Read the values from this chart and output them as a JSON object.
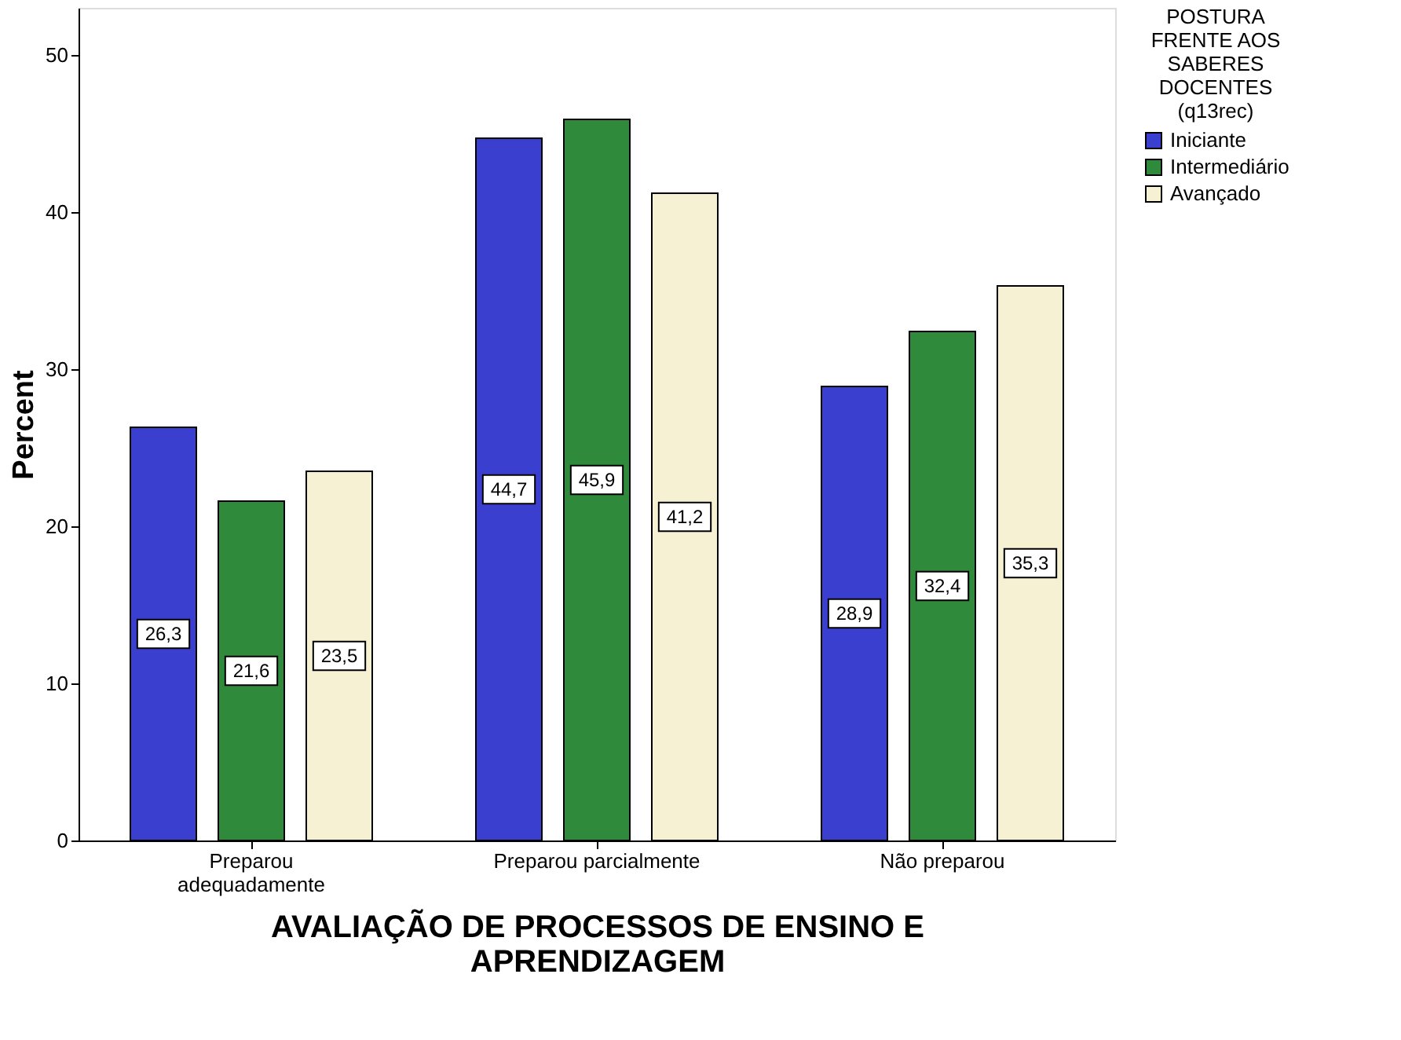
{
  "chart_data": {
    "type": "bar",
    "categories": [
      "Preparou adequadamente",
      "Preparou parcialmente",
      "Não preparou"
    ],
    "ylabel": "Percent",
    "xlabel": "AVALIAÇÃO DE PROCESSOS DE ENSINO E\nAPRENDIZAGEM",
    "legend_title": "POSTURA\nFRENTE AOS\nSABERES\nDOCENTES\n(q13rec)",
    "series": [
      {
        "name": "Iniciante",
        "color": "#3b3fd0",
        "values": [
          26.3,
          44.7,
          28.9
        ],
        "value_labels": [
          "26,3",
          "44,7",
          "28,9"
        ]
      },
      {
        "name": "Intermediário",
        "color": "#2f8a3c",
        "values": [
          21.6,
          45.9,
          32.4
        ],
        "value_labels": [
          "21,6",
          "45,9",
          "32,4"
        ]
      },
      {
        "name": "Avançado",
        "color": "#f6f1d2",
        "values": [
          23.5,
          41.2,
          35.3
        ],
        "value_labels": [
          "23,5",
          "41,2",
          "35,3"
        ]
      }
    ],
    "ylim": [
      0,
      53
    ],
    "yticks": [
      0,
      10,
      20,
      30,
      40,
      50
    ],
    "grid": false,
    "legend": "right"
  }
}
